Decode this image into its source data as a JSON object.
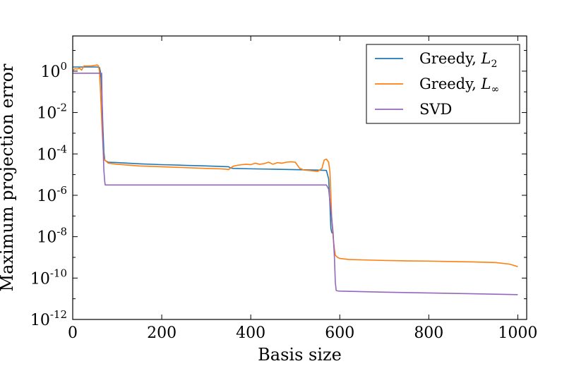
{
  "chart_data": {
    "type": "line",
    "title": "",
    "xlabel": "Basis size",
    "ylabel": "Maximum projection error",
    "xlim": [
      0,
      1020
    ],
    "ylim_log10": [
      -12,
      1.7
    ],
    "yscale": "log",
    "x_ticks": [
      0,
      200,
      400,
      600,
      800,
      1000
    ],
    "x_tick_labels": [
      "0",
      "200",
      "400",
      "600",
      "800",
      "1000"
    ],
    "y_ticks_log10": [
      0,
      -2,
      -4,
      -6,
      -8,
      -10,
      -12
    ],
    "y_tick_labels": [
      {
        "base": "10",
        "exp": "0"
      },
      {
        "base": "10",
        "exp": "-2"
      },
      {
        "base": "10",
        "exp": "-4"
      },
      {
        "base": "10",
        "exp": "-6"
      },
      {
        "base": "10",
        "exp": "-8"
      },
      {
        "base": "10",
        "exp": "-10"
      },
      {
        "base": "10",
        "exp": "-12"
      }
    ],
    "grid": false,
    "legend_position": "top-right",
    "series": [
      {
        "name": "Greedy, L2",
        "label_main": "Greedy, ",
        "label_math": "L",
        "label_sub": "2",
        "color": "#1f77b4",
        "x": [
          1,
          20,
          40,
          55,
          60,
          62,
          64,
          66,
          68,
          70,
          72,
          75,
          80,
          100,
          150,
          200,
          250,
          300,
          350,
          355,
          360,
          400,
          450,
          500,
          550,
          570,
          575,
          578,
          580,
          582,
          585
        ],
        "log10y": [
          0.2,
          0.2,
          0.2,
          0.2,
          0.18,
          0.0,
          -0.4,
          -1.5,
          -2.8,
          -3.9,
          -4.3,
          -4.35,
          -4.4,
          -4.42,
          -4.48,
          -4.52,
          -4.55,
          -4.58,
          -4.62,
          -4.68,
          -4.7,
          -4.72,
          -4.74,
          -4.76,
          -4.78,
          -4.8,
          -5.2,
          -6.5,
          -7.6,
          -7.8,
          -7.85
        ]
      },
      {
        "name": "Greedy, L∞",
        "label_main": "Greedy, ",
        "label_math": "L",
        "label_sub": "∞",
        "color": "#ff7f0e",
        "x": [
          1,
          5,
          10,
          15,
          20,
          25,
          30,
          40,
          50,
          55,
          58,
          60,
          62,
          64,
          66,
          68,
          70,
          72,
          75,
          80,
          100,
          150,
          200,
          250,
          300,
          330,
          345,
          350,
          360,
          370,
          380,
          390,
          400,
          410,
          420,
          430,
          440,
          450,
          460,
          470,
          480,
          490,
          500,
          510,
          520,
          530,
          540,
          550,
          560,
          565,
          570,
          575,
          578,
          580,
          582,
          585,
          588,
          590,
          595,
          600,
          620,
          650,
          700,
          750,
          800,
          850,
          900,
          950,
          980,
          990,
          1000
        ],
        "log10y": [
          0.05,
          0.12,
          0.1,
          0.15,
          0.05,
          0.25,
          0.25,
          0.25,
          0.28,
          0.3,
          0.25,
          0.0,
          -0.8,
          -1.8,
          -2.8,
          -3.6,
          -4.2,
          -4.3,
          -4.35,
          -4.45,
          -4.5,
          -4.58,
          -4.62,
          -4.66,
          -4.7,
          -4.72,
          -4.74,
          -4.76,
          -4.6,
          -4.55,
          -4.52,
          -4.5,
          -4.52,
          -4.45,
          -4.5,
          -4.47,
          -4.4,
          -4.5,
          -4.42,
          -4.45,
          -4.4,
          -4.38,
          -4.4,
          -4.7,
          -4.78,
          -4.8,
          -4.82,
          -4.85,
          -4.7,
          -4.3,
          -4.25,
          -4.4,
          -4.9,
          -6.0,
          -7.2,
          -8.0,
          -8.6,
          -8.9,
          -9.0,
          -9.05,
          -9.1,
          -9.12,
          -9.15,
          -9.17,
          -9.18,
          -9.2,
          -9.22,
          -9.25,
          -9.32,
          -9.38,
          -9.45
        ]
      },
      {
        "name": "SVD",
        "label_main": "SVD",
        "label_math": "",
        "label_sub": "",
        "color": "#9467bd",
        "x": [
          1,
          50,
          65,
          66,
          68,
          70,
          72,
          73,
          75,
          100,
          200,
          300,
          400,
          500,
          570,
          575,
          580,
          585,
          588,
          590,
          592,
          595,
          600,
          700,
          800,
          900,
          1000
        ],
        "log10y": [
          -0.1,
          -0.1,
          -0.1,
          -1.5,
          -3.5,
          -4.8,
          -5.35,
          -5.5,
          -5.5,
          -5.5,
          -5.5,
          -5.5,
          -5.5,
          -5.5,
          -5.5,
          -5.7,
          -6.7,
          -7.8,
          -9.0,
          -10.2,
          -10.6,
          -10.62,
          -10.63,
          -10.68,
          -10.72,
          -10.76,
          -10.8
        ]
      }
    ]
  }
}
